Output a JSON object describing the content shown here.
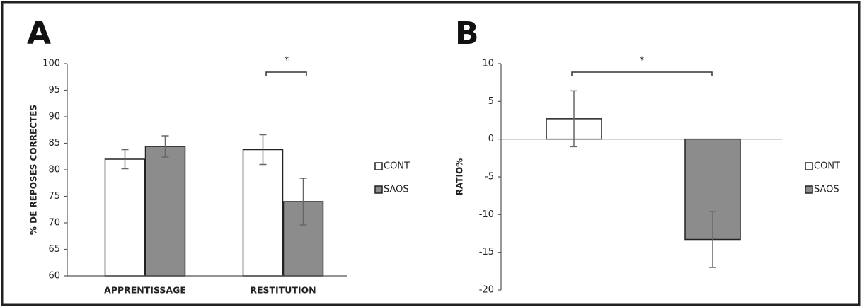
{
  "chart_data": [
    {
      "type": "bar",
      "title": "A",
      "ylabel": "% DE REPOSES CORRECTES",
      "categories": [
        "APPRENTISSAGE",
        "RESTITUTION"
      ],
      "series": [
        {
          "name": "CONT",
          "color": "#ffffff",
          "values": [
            82,
            83.8
          ],
          "errors": [
            1.8,
            2.8
          ]
        },
        {
          "name": "SAOS",
          "color": "#8c8c8c",
          "values": [
            84.4,
            74
          ],
          "errors": [
            2,
            4.4
          ]
        }
      ],
      "ylim": [
        60,
        100
      ],
      "yticks": [
        60,
        65,
        70,
        75,
        80,
        85,
        90,
        95,
        100
      ],
      "annotation": "*",
      "legend": "right"
    },
    {
      "type": "bar",
      "title": "B",
      "ylabel": "RATIO%",
      "categories": [
        null,
        null
      ],
      "series": [
        {
          "name": "CONT",
          "color": "#ffffff",
          "values": [
            2.7,
            null
          ],
          "errors": [
            3.7,
            null
          ]
        },
        {
          "name": "SAOS",
          "color": "#8c8c8c",
          "values": [
            null,
            -13.3
          ],
          "errors": [
            null,
            3.7
          ]
        }
      ],
      "ylim": [
        -20,
        10
      ],
      "yticks": [
        -20,
        -15,
        -10,
        -5,
        0,
        5,
        10
      ],
      "annotation": "*",
      "legend": "right"
    }
  ]
}
